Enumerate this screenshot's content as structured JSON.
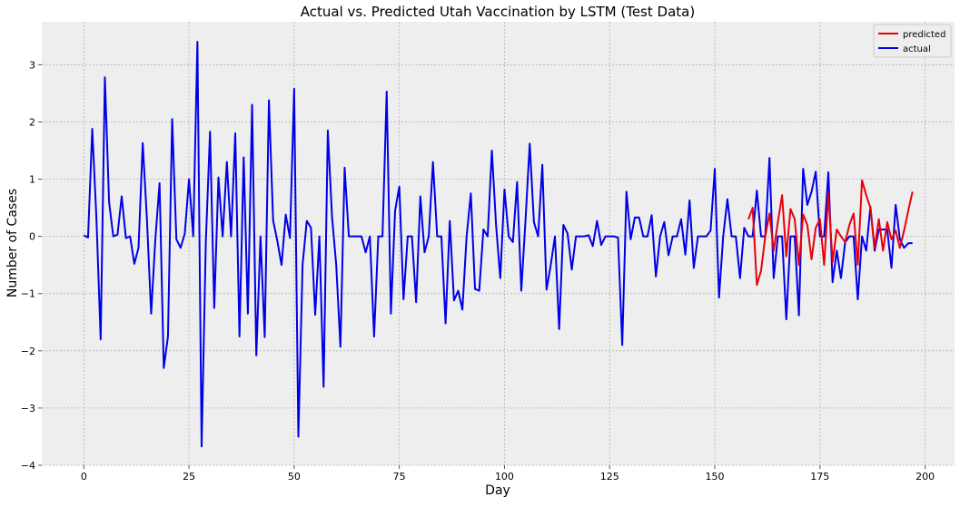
{
  "chart_data": {
    "type": "line",
    "title": "Actual vs. Predicted Utah Vaccination by LSTM (Test Data)",
    "xlabel": "Day",
    "ylabel": "Number of Cases",
    "xlim": [
      -10,
      207
    ],
    "ylim": [
      -4,
      3.75
    ],
    "xticks": [
      0,
      25,
      50,
      75,
      100,
      125,
      150,
      175,
      200
    ],
    "yticks": [
      -4,
      -3,
      -2,
      -1,
      0,
      1,
      2,
      3
    ],
    "grid": true,
    "legend": "top-right",
    "series": [
      {
        "name": "predicted",
        "color": "#e8000b",
        "x": [
          158,
          159,
          160,
          161,
          162,
          163,
          164,
          165,
          166,
          167,
          168,
          169,
          170,
          171,
          172,
          173,
          174,
          175,
          176,
          177,
          178,
          179,
          180,
          181,
          182,
          183,
          184,
          185,
          186,
          187,
          188,
          189,
          190,
          191,
          192,
          193,
          194,
          195,
          196,
          197
        ],
        "y": [
          0.3,
          0.5,
          -0.85,
          -0.6,
          0.0,
          0.4,
          -0.25,
          0.25,
          0.72,
          -0.35,
          0.48,
          0.3,
          -0.5,
          0.38,
          0.2,
          -0.4,
          0.15,
          0.3,
          -0.5,
          0.75,
          -0.45,
          0.12,
          0.0,
          -0.1,
          0.2,
          0.4,
          -0.5,
          0.98,
          0.72,
          0.5,
          -0.2,
          0.3,
          -0.25,
          0.25,
          -0.05,
          0.1,
          -0.2,
          0.1,
          0.45,
          0.78
        ]
      },
      {
        "name": "actual",
        "color": "#0000e6",
        "x": [
          0,
          1,
          2,
          3,
          4,
          5,
          6,
          7,
          8,
          9,
          10,
          11,
          12,
          13,
          14,
          15,
          16,
          17,
          18,
          19,
          20,
          21,
          22,
          23,
          24,
          25,
          26,
          27,
          28,
          29,
          30,
          31,
          32,
          33,
          34,
          35,
          36,
          37,
          38,
          39,
          40,
          41,
          42,
          43,
          44,
          45,
          46,
          47,
          48,
          49,
          50,
          51,
          52,
          53,
          54,
          55,
          56,
          57,
          58,
          59,
          60,
          61,
          62,
          63,
          64,
          65,
          66,
          67,
          68,
          69,
          70,
          71,
          72,
          73,
          74,
          75,
          76,
          77,
          78,
          79,
          80,
          81,
          82,
          83,
          84,
          85,
          86,
          87,
          88,
          89,
          90,
          91,
          92,
          93,
          94,
          95,
          96,
          97,
          98,
          99,
          100,
          101,
          102,
          103,
          104,
          105,
          106,
          107,
          108,
          109,
          110,
          111,
          112,
          113,
          114,
          115,
          116,
          117,
          118,
          119,
          120,
          121,
          122,
          123,
          124,
          125,
          126,
          127,
          128,
          129,
          130,
          131,
          132,
          133,
          134,
          135,
          136,
          137,
          138,
          139,
          140,
          141,
          142,
          143,
          144,
          145,
          146,
          147,
          148,
          149,
          150,
          151,
          152,
          153,
          154,
          155,
          156,
          157,
          158,
          159,
          160,
          161,
          162,
          163,
          164,
          165,
          166,
          167,
          168,
          169,
          170,
          171,
          172,
          173,
          174,
          175,
          176,
          177,
          178,
          179,
          180,
          181,
          182,
          183,
          184,
          185,
          186,
          187,
          188,
          189,
          190,
          191,
          192,
          193,
          194,
          195,
          196,
          197
        ],
        "y": [
          0.02,
          -0.02,
          1.88,
          0.3,
          -1.8,
          2.78,
          0.6,
          0.0,
          0.03,
          0.7,
          -0.03,
          0.0,
          -0.48,
          -0.2,
          1.63,
          0.3,
          -1.35,
          -0.05,
          0.93,
          -2.3,
          -1.75,
          2.05,
          -0.05,
          -0.2,
          0.05,
          1.0,
          0.0,
          3.4,
          -3.67,
          -0.1,
          1.83,
          -1.25,
          1.03,
          0.0,
          1.3,
          0.0,
          1.8,
          -1.75,
          1.38,
          -1.35,
          2.3,
          -2.08,
          0.0,
          -1.76,
          2.38,
          0.28,
          -0.08,
          -0.5,
          0.38,
          -0.03,
          2.58,
          -3.5,
          -0.5,
          0.27,
          0.15,
          -1.37,
          0.0,
          -2.63,
          1.85,
          0.35,
          -0.5,
          -1.93,
          1.2,
          0.0,
          0.0,
          0.0,
          0.0,
          -0.28,
          0.0,
          -1.75,
          0.0,
          0.0,
          2.53,
          -1.35,
          0.45,
          0.87,
          -1.1,
          0.0,
          0.0,
          -1.15,
          0.7,
          -0.28,
          0.0,
          1.3,
          0.0,
          0.0,
          -1.52,
          0.27,
          -1.12,
          -0.95,
          -1.28,
          0.0,
          0.75,
          -0.92,
          -0.95,
          0.12,
          0.0,
          1.5,
          0.2,
          -0.73,
          0.82,
          0.0,
          -0.1,
          0.95,
          -0.95,
          0.28,
          1.62,
          0.25,
          0.0,
          1.25,
          -0.93,
          -0.5,
          0.0,
          -1.62,
          0.2,
          0.05,
          -0.58,
          0.0,
          0.0,
          0.0,
          0.02,
          -0.17,
          0.27,
          -0.15,
          0.0,
          0.0,
          0.0,
          -0.02,
          -1.9,
          0.78,
          -0.05,
          0.33,
          0.33,
          0.0,
          0.0,
          0.37,
          -0.7,
          0.0,
          0.25,
          -0.33,
          0.0,
          0.0,
          0.3,
          -0.32,
          0.63,
          -0.55,
          0.0,
          0.0,
          0.0,
          0.1,
          1.18,
          -1.07,
          0.0,
          0.65,
          0.0,
          0.0,
          -0.73,
          0.15,
          0.0,
          0.0,
          0.8,
          0.0,
          0.0,
          1.37,
          -0.73,
          0.0,
          0.0,
          -1.45,
          0.0,
          0.0,
          -1.38,
          1.18,
          0.55,
          0.78,
          1.13,
          0.0,
          0.0,
          1.12,
          -0.8,
          -0.25,
          -0.73,
          -0.1,
          0.0,
          0.0,
          -1.1,
          0.0,
          -0.25,
          0.52,
          -0.25,
          0.12,
          0.12,
          0.12,
          -0.55,
          0.55,
          -0.05,
          -0.2,
          -0.12,
          -0.12
        ]
      }
    ]
  }
}
